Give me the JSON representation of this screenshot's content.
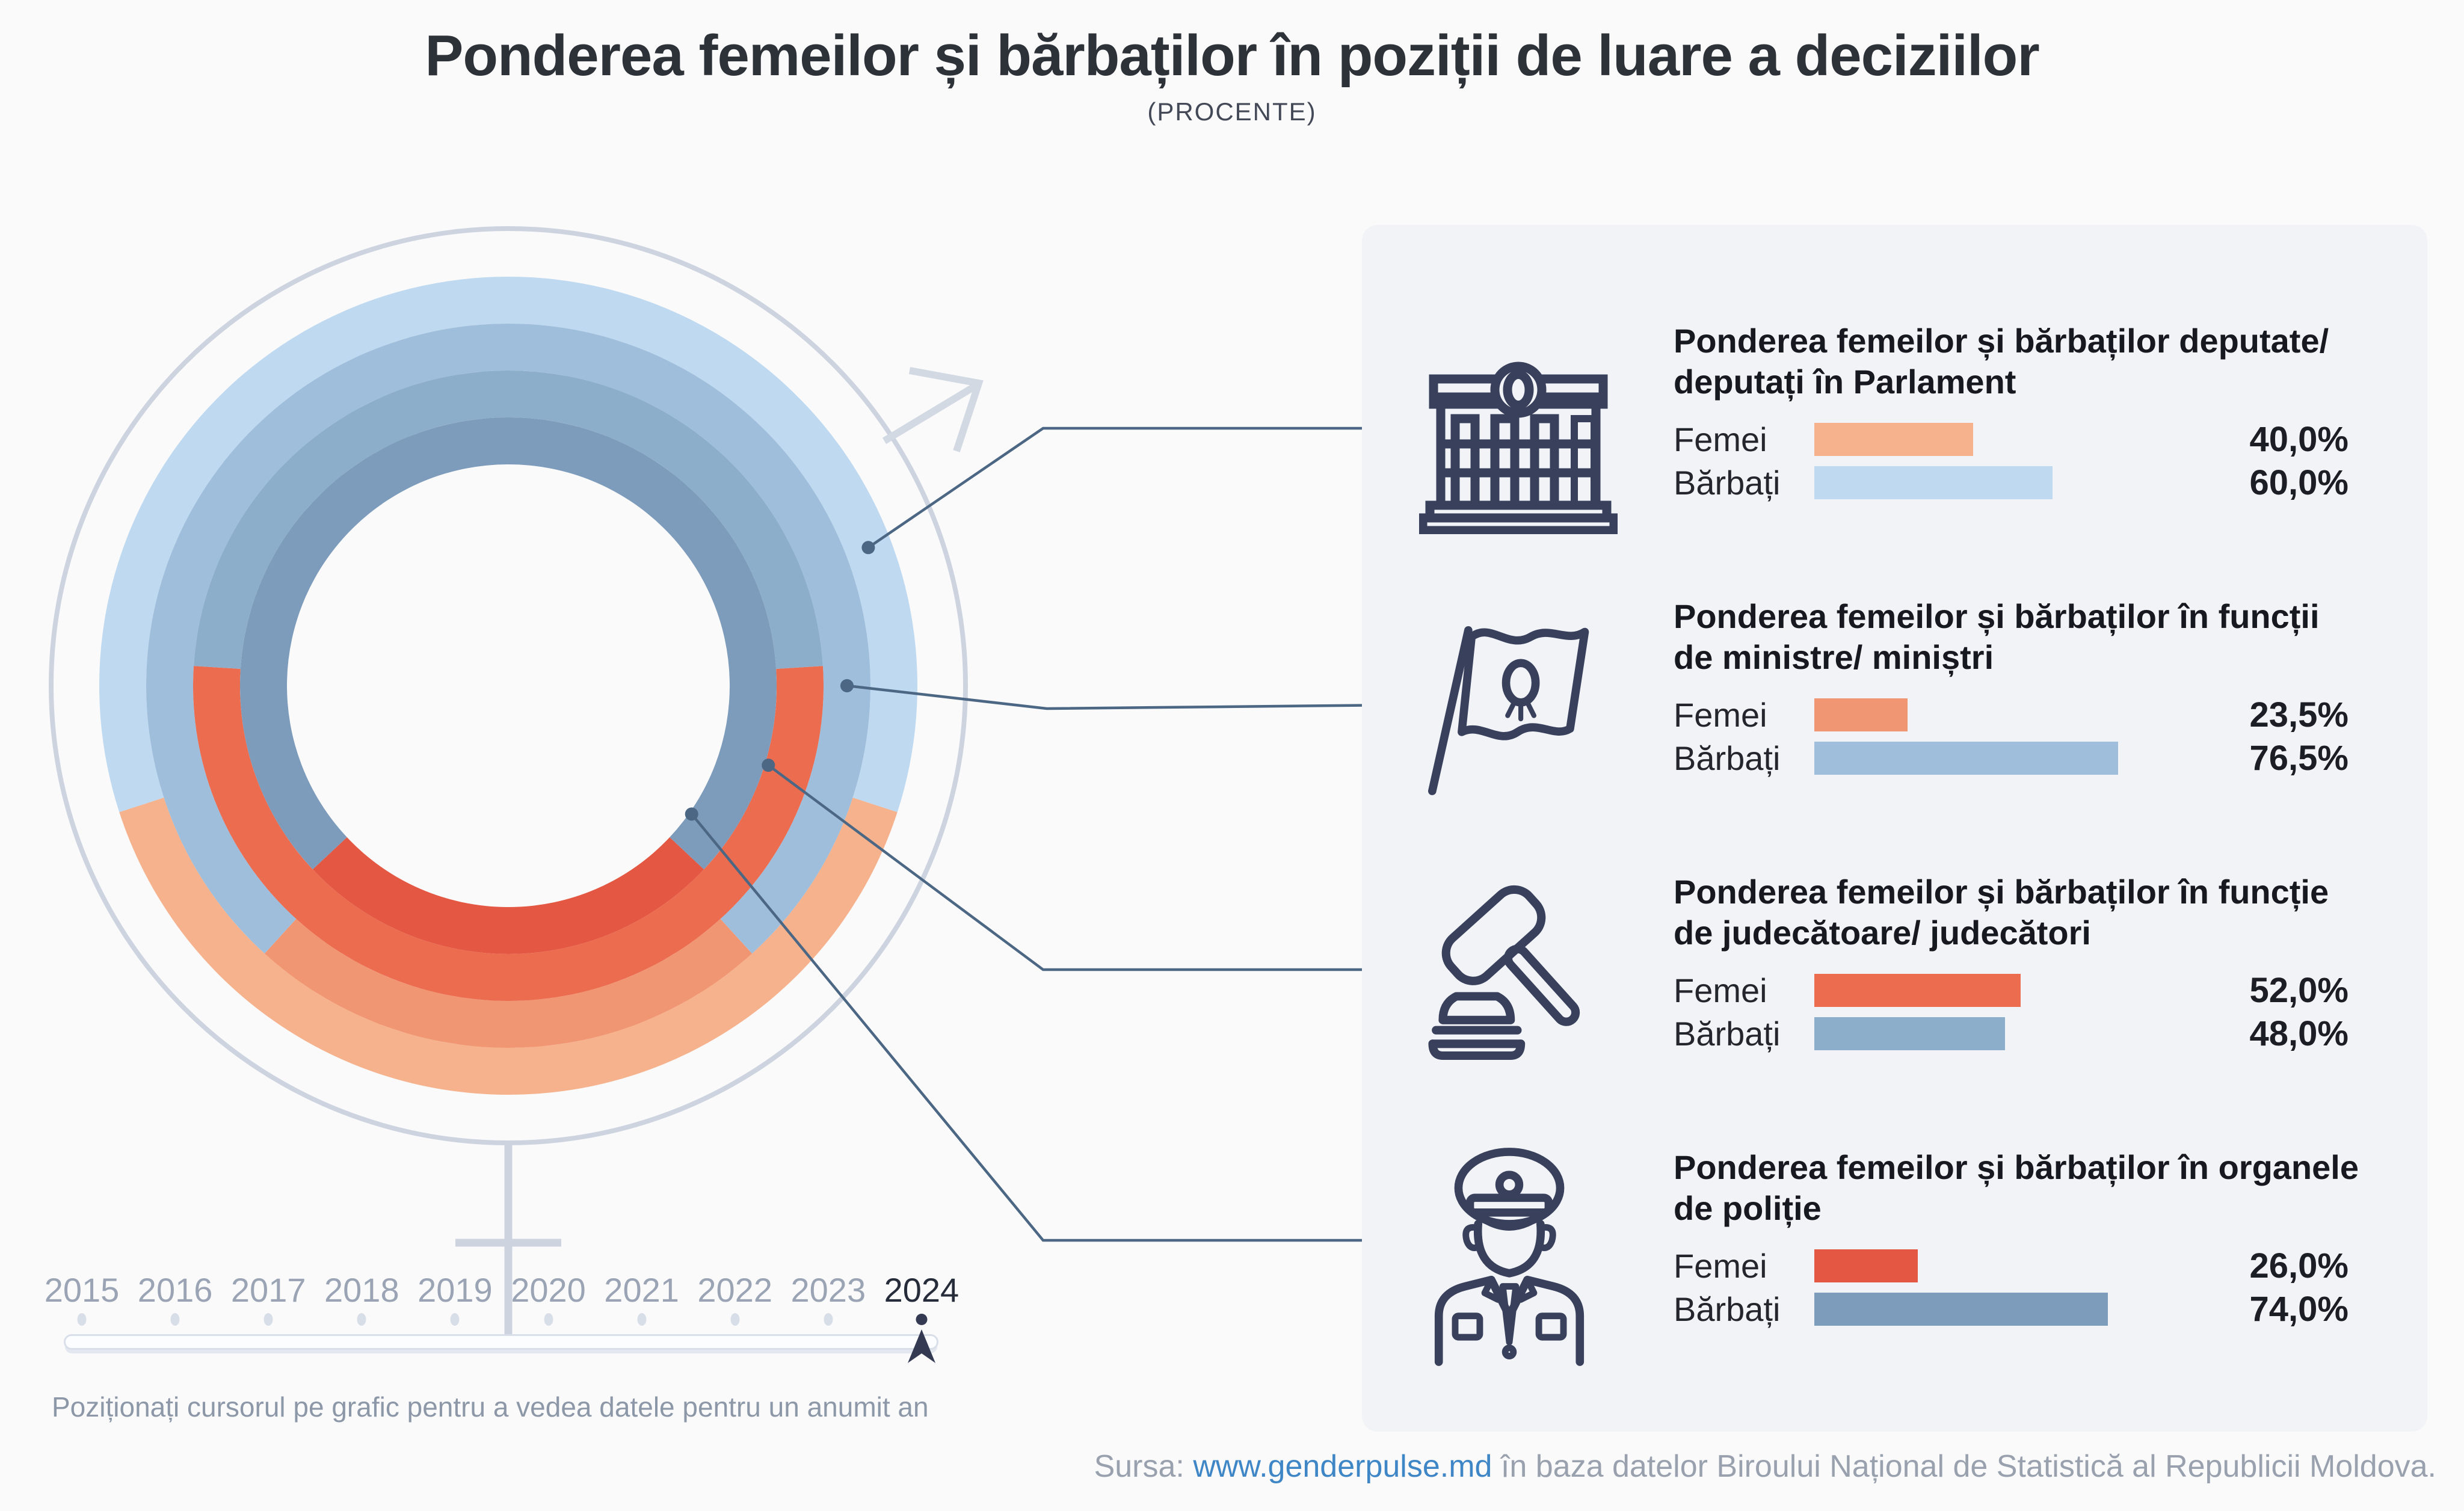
{
  "header": {
    "title": "Ponderea femeilor și bărbaților în poziții de luare a deciziilor",
    "subtitle": "(PROCENTE)"
  },
  "chart_data": {
    "type": "donut-multi-ring",
    "unit": "percent",
    "selected_year": "2024",
    "rings_order": "outer-to-inner",
    "series": [
      {
        "category": "Deputate/ deputați în Parlament",
        "femei": 40.0,
        "barbati": 60.0,
        "femei_color": "#F6B28C",
        "barbati_color": "#BED9F0"
      },
      {
        "category": "Funcții de ministre/ miniștri",
        "femei": 23.5,
        "barbati": 76.5,
        "femei_color": "#F19672",
        "barbati_color": "#9FBEDB"
      },
      {
        "category": "Funcție de judecătoare/ judecători",
        "femei": 52.0,
        "barbati": 48.0,
        "femei_color": "#EC6C50",
        "barbati_color": "#8CAECB"
      },
      {
        "category": "Organele de poliție",
        "femei": 26.0,
        "barbati": 74.0,
        "femei_color": "#E45742",
        "barbati_color": "#7D9CBB"
      }
    ],
    "outline_color": "#CDD4E0",
    "connector_color": "#4C6784",
    "gender_symbol": "combined female-male outline around donut"
  },
  "panel": {
    "background": "#F1F3F7",
    "sections": [
      {
        "icon": "parliament-icon",
        "title_lines": [
          "Ponderea femeilor și bărbaților deputate/",
          "deputați în Parlament"
        ],
        "rows": [
          {
            "label": "Femei",
            "value": 40.0,
            "value_label": "40,0%"
          },
          {
            "label": "Bărbați",
            "value": 60.0,
            "value_label": "60,0%"
          }
        ]
      },
      {
        "icon": "flag-icon",
        "title_lines": [
          "Ponderea femeilor și bărbaților în funcții",
          "de ministre/ miniștri"
        ],
        "rows": [
          {
            "label": "Femei",
            "value": 23.5,
            "value_label": "23,5%"
          },
          {
            "label": "Bărbați",
            "value": 76.5,
            "value_label": "76,5%"
          }
        ]
      },
      {
        "icon": "gavel-icon",
        "title_lines": [
          "Ponderea femeilor și bărbaților în funcție",
          "de judecătoare/ judecători"
        ],
        "rows": [
          {
            "label": "Femei",
            "value": 52.0,
            "value_label": "52,0%"
          },
          {
            "label": "Bărbați",
            "value": 48.0,
            "value_label": "48,0%"
          }
        ]
      },
      {
        "icon": "police-icon",
        "title_lines": [
          "Ponderea femeilor și bărbaților în organele",
          "de poliție"
        ],
        "rows": [
          {
            "label": "Femei",
            "value": 26.0,
            "value_label": "26,0%"
          },
          {
            "label": "Bărbați",
            "value": 74.0,
            "value_label": "74,0%"
          }
        ]
      }
    ]
  },
  "timeline": {
    "years": [
      "2015",
      "2016",
      "2017",
      "2018",
      "2019",
      "2020",
      "2021",
      "2022",
      "2023",
      "2024"
    ],
    "selected_year": "2024",
    "hint": "Poziționați cursorul pe grafic pentru a vedea datele pentru un anumit an"
  },
  "source": {
    "label": "Sursa: ",
    "link_text": "www.genderpulse.md",
    "text_after": " în baza datelor Biroului Național de Statistică al Republicii Moldova."
  }
}
